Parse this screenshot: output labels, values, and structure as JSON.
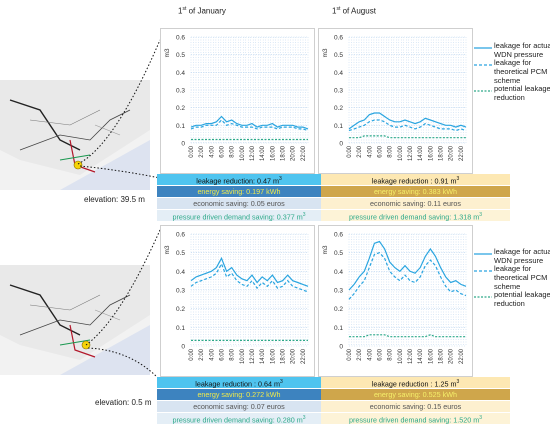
{
  "headers": {
    "jan_day": "1",
    "jan_sup": "st",
    "jan_rest": " of January",
    "aug_day": "1",
    "aug_sup": "st",
    "aug_rest": " of August"
  },
  "maps": [
    {
      "elevation": "elevation: 39.5 m"
    },
    {
      "elevation": "elevation: 0.5 m"
    }
  ],
  "legend": {
    "actual": "leakage for actual WDN pressure",
    "theoretical": "leakage for theoretical PCM scheme",
    "potential": "potential leakage reduction"
  },
  "colors": {
    "series_main": "#2aa5e0",
    "series_reduction": "#2da989",
    "grid": "#b9d3ee"
  },
  "stats": {
    "top": {
      "jan": {
        "leakage": "leakage reduction: 0.47 m",
        "energy": "energy saving: 0.197 kWh",
        "economic": "economic saving: 0.05 euros",
        "demand": "pressure driven demand saving: 0.377 m"
      },
      "aug": {
        "leakage": "leakage reduction : 0.91 m",
        "energy": "energy saving: 0.383 kWh",
        "economic": "economic saving: 0.11 euros",
        "demand": "pressure driven demand saving:  1.318 m"
      }
    },
    "bottom": {
      "jan": {
        "leakage": "leakage reduction : 0.64 m",
        "energy": "energy saving: 0.272 kWh",
        "economic": "economic saving: 0.07 euros",
        "demand": "pressure driven demand saving: 0.280 m"
      },
      "aug": {
        "leakage": "leakage reduction : 1.25 m",
        "energy": "energy saving: 0.525 kWh",
        "economic": "economic saving: 0.15 euros",
        "demand": "pressure driven demand saving: 1.520 m"
      }
    },
    "unit_sup": "3"
  },
  "chart_data": [
    {
      "type": "line",
      "panel": "top-january",
      "ylabel": "m3",
      "ylim": [
        0,
        0.6
      ],
      "yticks": [
        "0",
        "0.1",
        "0.2",
        "0.3",
        "0.4",
        "0.5",
        "0.6"
      ],
      "xticks": [
        "0:00",
        "2:00",
        "4:00",
        "6:00",
        "8:00",
        "10:00",
        "12:00",
        "14:00",
        "16:00",
        "18:00",
        "20:00",
        "22:00"
      ],
      "series": [
        {
          "name": "leakage for actual WDN pressure",
          "values": [
            0.09,
            0.1,
            0.1,
            0.11,
            0.11,
            0.12,
            0.15,
            0.12,
            0.13,
            0.11,
            0.1,
            0.1,
            0.11,
            0.09,
            0.1,
            0.1,
            0.11,
            0.09,
            0.1,
            0.1,
            0.1,
            0.09,
            0.09,
            0.08
          ]
        },
        {
          "name": "leakage for theoretical PCM scheme",
          "values": [
            0.08,
            0.09,
            0.09,
            0.1,
            0.1,
            0.1,
            0.13,
            0.1,
            0.11,
            0.1,
            0.09,
            0.09,
            0.09,
            0.08,
            0.09,
            0.09,
            0.09,
            0.08,
            0.09,
            0.09,
            0.09,
            0.08,
            0.08,
            0.07
          ]
        },
        {
          "name": "potential leakage reduction",
          "values": [
            0.02,
            0.02,
            0.02,
            0.02,
            0.02,
            0.02,
            0.02,
            0.02,
            0.02,
            0.02,
            0.02,
            0.02,
            0.02,
            0.02,
            0.02,
            0.02,
            0.02,
            0.02,
            0.02,
            0.02,
            0.02,
            0.02,
            0.02,
            0.02
          ]
        }
      ]
    },
    {
      "type": "line",
      "panel": "top-august",
      "ylabel": "m3",
      "ylim": [
        0,
        0.6
      ],
      "yticks": [
        "0",
        "0.1",
        "0.2",
        "0.3",
        "0.4",
        "0.5",
        "0.6"
      ],
      "xticks": [
        "0:00",
        "2:00",
        "4:00",
        "6:00",
        "8:00",
        "10:00",
        "12:00",
        "14:00",
        "16:00",
        "18:00",
        "20:00",
        "22:00"
      ],
      "series": [
        {
          "name": "leakage for actual WDN pressure",
          "values": [
            0.08,
            0.1,
            0.12,
            0.13,
            0.16,
            0.17,
            0.17,
            0.15,
            0.13,
            0.12,
            0.12,
            0.13,
            0.12,
            0.11,
            0.12,
            0.14,
            0.13,
            0.12,
            0.11,
            0.1,
            0.1,
            0.09,
            0.1,
            0.09
          ]
        },
        {
          "name": "leakage for theoretical PCM scheme",
          "values": [
            0.07,
            0.08,
            0.09,
            0.1,
            0.12,
            0.13,
            0.13,
            0.12,
            0.1,
            0.09,
            0.09,
            0.1,
            0.09,
            0.08,
            0.09,
            0.11,
            0.1,
            0.09,
            0.08,
            0.08,
            0.08,
            0.07,
            0.08,
            0.07
          ]
        },
        {
          "name": "potential leakage reduction",
          "values": [
            0.03,
            0.03,
            0.03,
            0.04,
            0.04,
            0.04,
            0.04,
            0.04,
            0.03,
            0.03,
            0.03,
            0.03,
            0.03,
            0.03,
            0.03,
            0.03,
            0.03,
            0.03,
            0.03,
            0.03,
            0.03,
            0.03,
            0.03,
            0.03
          ]
        }
      ]
    },
    {
      "type": "line",
      "panel": "bottom-january",
      "ylabel": "m3",
      "ylim": [
        0,
        0.6
      ],
      "yticks": [
        "0",
        "0.1",
        "0.2",
        "0.3",
        "0.4",
        "0.5",
        "0.6"
      ],
      "xticks": [
        "0:00",
        "2:00",
        "4:00",
        "6:00",
        "8:00",
        "10:00",
        "12:00",
        "14:00",
        "16:00",
        "18:00",
        "20:00",
        "22:00"
      ],
      "series": [
        {
          "name": "leakage for actual WDN pressure",
          "values": [
            0.35,
            0.37,
            0.38,
            0.39,
            0.4,
            0.42,
            0.47,
            0.4,
            0.42,
            0.38,
            0.36,
            0.35,
            0.38,
            0.34,
            0.37,
            0.35,
            0.38,
            0.34,
            0.35,
            0.38,
            0.35,
            0.34,
            0.33,
            0.32
          ]
        },
        {
          "name": "leakage for theoretical PCM scheme",
          "values": [
            0.32,
            0.34,
            0.35,
            0.36,
            0.37,
            0.39,
            0.44,
            0.37,
            0.39,
            0.35,
            0.33,
            0.32,
            0.35,
            0.31,
            0.34,
            0.32,
            0.35,
            0.31,
            0.32,
            0.35,
            0.32,
            0.31,
            0.3,
            0.29
          ]
        },
        {
          "name": "potential leakage reduction",
          "values": [
            0.03,
            0.03,
            0.03,
            0.03,
            0.03,
            0.03,
            0.03,
            0.03,
            0.03,
            0.03,
            0.03,
            0.03,
            0.03,
            0.03,
            0.03,
            0.03,
            0.03,
            0.03,
            0.03,
            0.03,
            0.03,
            0.03,
            0.03,
            0.03
          ]
        }
      ]
    },
    {
      "type": "line",
      "panel": "bottom-august",
      "ylabel": "m3",
      "ylim": [
        0,
        0.6
      ],
      "yticks": [
        "0",
        "0.1",
        "0.2",
        "0.3",
        "0.4",
        "0.5",
        "0.6"
      ],
      "xticks": [
        "0:00",
        "2:00",
        "4:00",
        "6:00",
        "8:00",
        "10:00",
        "12:00",
        "14:00",
        "16:00",
        "18:00",
        "20:00",
        "22:00"
      ],
      "series": [
        {
          "name": "leakage for actual WDN pressure",
          "values": [
            0.3,
            0.33,
            0.37,
            0.4,
            0.47,
            0.55,
            0.56,
            0.52,
            0.45,
            0.42,
            0.4,
            0.43,
            0.4,
            0.39,
            0.42,
            0.48,
            0.52,
            0.48,
            0.42,
            0.37,
            0.34,
            0.35,
            0.33,
            0.32
          ]
        },
        {
          "name": "leakage for theoretical PCM scheme",
          "values": [
            0.25,
            0.28,
            0.32,
            0.35,
            0.42,
            0.49,
            0.5,
            0.47,
            0.4,
            0.37,
            0.35,
            0.38,
            0.35,
            0.34,
            0.37,
            0.43,
            0.46,
            0.43,
            0.37,
            0.32,
            0.29,
            0.3,
            0.28,
            0.27
          ]
        },
        {
          "name": "potential leakage reduction",
          "values": [
            0.05,
            0.05,
            0.05,
            0.05,
            0.06,
            0.06,
            0.06,
            0.06,
            0.05,
            0.05,
            0.05,
            0.05,
            0.05,
            0.05,
            0.05,
            0.05,
            0.06,
            0.05,
            0.05,
            0.05,
            0.05,
            0.05,
            0.05,
            0.05
          ]
        }
      ]
    }
  ]
}
